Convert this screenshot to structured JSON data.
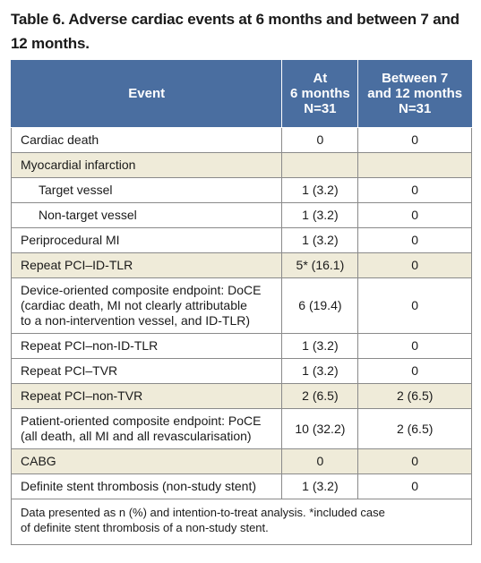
{
  "title": "Table 6. Adverse cardiac events at 6 months and between 7 and 12 months.",
  "table": {
    "header": [
      "Event",
      "At\n6 months\nN=31",
      "Between 7\nand 12 months\nN=31"
    ],
    "rows": [
      [
        "Cardiac death",
        "0",
        "0"
      ],
      [
        "Myocardial infarction",
        "",
        ""
      ],
      [
        "Target vessel",
        "1 (3.2)",
        "0"
      ],
      [
        "Non-target vessel",
        "1 (3.2)",
        "0"
      ],
      [
        "Periprocedural MI",
        "1 (3.2)",
        "0"
      ],
      [
        "Repeat PCI–ID-TLR",
        "5* (16.1)",
        "0"
      ],
      [
        "Device-oriented composite endpoint: DoCE\n(cardiac death, MI not clearly attributable\nto a non-intervention vessel, and ID-TLR)",
        "6 (19.4)",
        "0"
      ],
      [
        "Repeat PCI–non-ID-TLR",
        "1 (3.2)",
        "0"
      ],
      [
        "Repeat PCI–TVR",
        "1 (3.2)",
        "0"
      ],
      [
        "Repeat PCI–non-TVR",
        "2 (6.5)",
        "2 (6.5)"
      ],
      [
        "Patient-oriented composite endpoint: PoCE\n(all death, all MI and all revascularisation)",
        "10 (32.2)",
        "2 (6.5)"
      ],
      [
        "CABG",
        "0",
        "0"
      ],
      [
        "Definite stent thrombosis (non-study stent)",
        "1 (3.2)",
        "0"
      ]
    ],
    "footnote": "Data presented as n (%) and intention-to-treat analysis. *included case\nof definite stent thrombosis of a non-study stent."
  }
}
